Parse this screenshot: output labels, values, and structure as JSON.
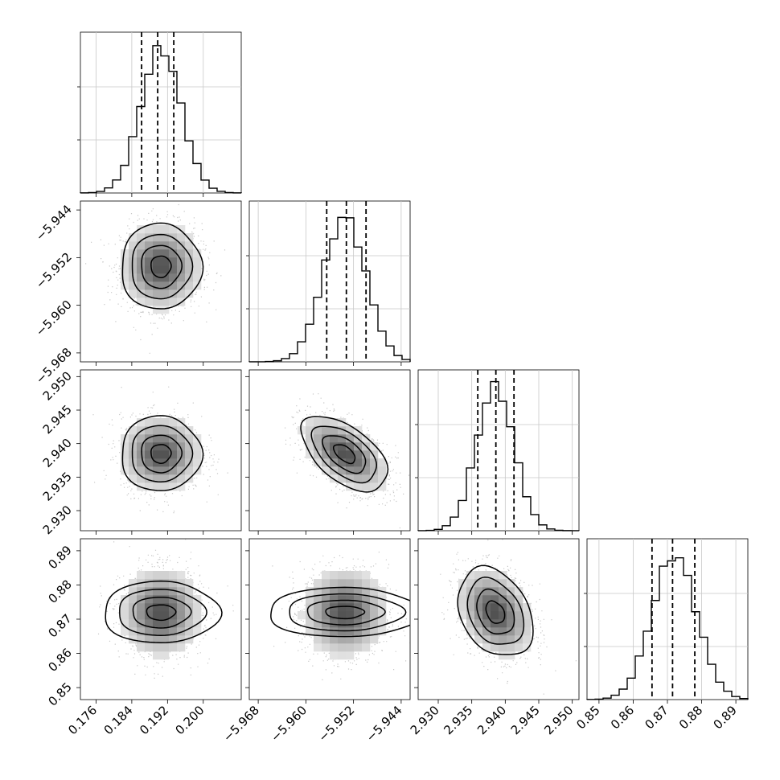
{
  "chart_data": {
    "type": "corner",
    "grid": true,
    "parameters": [
      {
        "mean": 0.1905,
        "sigma": 0.0045,
        "range": [
          0.1725,
          0.2085
        ],
        "ticks": [
          0.176,
          0.184,
          0.192,
          0.2
        ],
        "tick_labels": [
          "0.176",
          "0.184",
          "0.192",
          "0.200"
        ],
        "quantiles": [
          0.1862,
          0.1898,
          0.1934
        ]
      },
      {
        "mean": -5.9535,
        "sigma": 0.0036,
        "range": [
          -5.9695,
          -5.9425
        ],
        "ticks": [
          -5.968,
          -5.96,
          -5.952,
          -5.944
        ],
        "tick_labels": [
          "−5.968",
          "−5.960",
          "−5.952",
          "−5.944"
        ],
        "quantiles": [
          -5.9565,
          -5.9532,
          -5.9499
        ]
      },
      {
        "mean": 2.9385,
        "sigma": 0.0028,
        "range": [
          2.927,
          2.951
        ],
        "ticks": [
          2.93,
          2.935,
          2.94,
          2.945,
          2.95
        ],
        "tick_labels": [
          "2.930",
          "2.935",
          "2.940",
          "2.945",
          "2.950"
        ],
        "quantiles": [
          2.9359,
          2.9386,
          2.9413
        ]
      },
      {
        "mean": 0.872,
        "sigma": 0.0065,
        "range": [
          0.8465,
          0.8935
        ],
        "ticks": [
          0.85,
          0.86,
          0.87,
          0.88,
          0.89
        ],
        "tick_labels": [
          "0.85",
          "0.86",
          "0.87",
          "0.88",
          "0.89"
        ],
        "quantiles": [
          0.8655,
          0.8715,
          0.878
        ]
      }
    ],
    "correlations": [
      [
        1,
        0,
        0,
        0
      ],
      [
        0,
        1,
        -0.55,
        0
      ],
      [
        0,
        -0.55,
        1,
        -0.3
      ],
      [
        0,
        0,
        -0.3,
        1
      ]
    ],
    "contour_levels_sigma": [
      0.5,
      1.0,
      1.5,
      2.0
    ],
    "histogram_bins": 20,
    "quantile_style": "dashed"
  }
}
